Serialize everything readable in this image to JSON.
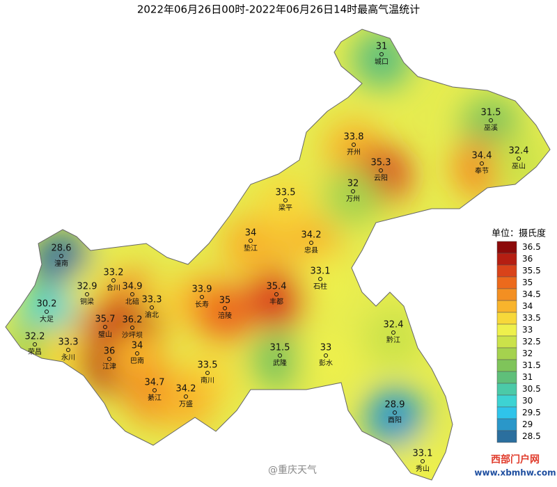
{
  "title": "2022年06月26日00时-2022年06月26日14时最高气温统计",
  "stations": [
    {
      "name": "城口",
      "value": 31
    },
    {
      "name": "巫溪",
      "value": 31.5
    },
    {
      "name": "开州",
      "value": 33.8
    },
    {
      "name": "云阳",
      "value": 35.3
    },
    {
      "name": "奉节",
      "value": 34.4
    },
    {
      "name": "巫山",
      "value": 32.4
    },
    {
      "name": "万州",
      "value": 32
    },
    {
      "name": "梁平",
      "value": 33.5
    },
    {
      "name": "垫江",
      "value": 34
    },
    {
      "name": "忠县",
      "value": 34.2
    },
    {
      "name": "石柱",
      "value": 33.1
    },
    {
      "name": "丰都",
      "value": 35.4
    },
    {
      "name": "长寿",
      "value": 33.9
    },
    {
      "name": "涪陵",
      "value": 35
    },
    {
      "name": "潼南",
      "value": 28.6
    },
    {
      "name": "合川",
      "value": 33.2
    },
    {
      "name": "铜梁",
      "value": 32.9
    },
    {
      "name": "北碚",
      "value": 34.9
    },
    {
      "name": "渝北",
      "value": 33.3
    },
    {
      "name": "大足",
      "value": 30.2
    },
    {
      "name": "璧山",
      "value": 35.7
    },
    {
      "name": "沙坪坝",
      "value": 36.2
    },
    {
      "name": "荣昌",
      "value": 32.2
    },
    {
      "name": "永川",
      "value": 33.3
    },
    {
      "name": "江津",
      "value": 36
    },
    {
      "name": "巴南",
      "value": 34
    },
    {
      "name": "南川",
      "value": 33.5
    },
    {
      "name": "武隆",
      "value": 31.5
    },
    {
      "name": "彭水",
      "value": 33
    },
    {
      "name": "黔江",
      "value": 32.4
    },
    {
      "name": "綦江",
      "value": 34.7
    },
    {
      "name": "万盛",
      "value": 34.2
    },
    {
      "name": "酉阳",
      "value": 28.9
    },
    {
      "name": "秀山",
      "value": 33.1
    }
  ],
  "legend": {
    "title": "单位：摄氏度",
    "items": [
      {
        "value": 36.5,
        "color": "#8b0a0a"
      },
      {
        "value": 36,
        "color": "#b51e12"
      },
      {
        "value": 35.5,
        "color": "#d9431a"
      },
      {
        "value": 35,
        "color": "#ec6a1c"
      },
      {
        "value": 34.5,
        "color": "#f38f22"
      },
      {
        "value": 34,
        "color": "#f8b42c"
      },
      {
        "value": 33.5,
        "color": "#f7d83a"
      },
      {
        "value": 33,
        "color": "#eef04c"
      },
      {
        "value": 32.5,
        "color": "#cbe24a"
      },
      {
        "value": 32,
        "color": "#a5d24e"
      },
      {
        "value": 31.5,
        "color": "#7fc45a"
      },
      {
        "value": 31,
        "color": "#5fbf7a"
      },
      {
        "value": 30.5,
        "color": "#4bcaa8"
      },
      {
        "value": 30,
        "color": "#3dd3d3"
      },
      {
        "value": 29.5,
        "color": "#2fc4ea"
      },
      {
        "value": 29,
        "color": "#2a97c9"
      },
      {
        "value": 28.5,
        "color": "#2b6f9e"
      }
    ]
  },
  "watermark": "@重庆天气",
  "site": {
    "name": "西部门户网",
    "url": "www.xbmhw.com"
  }
}
